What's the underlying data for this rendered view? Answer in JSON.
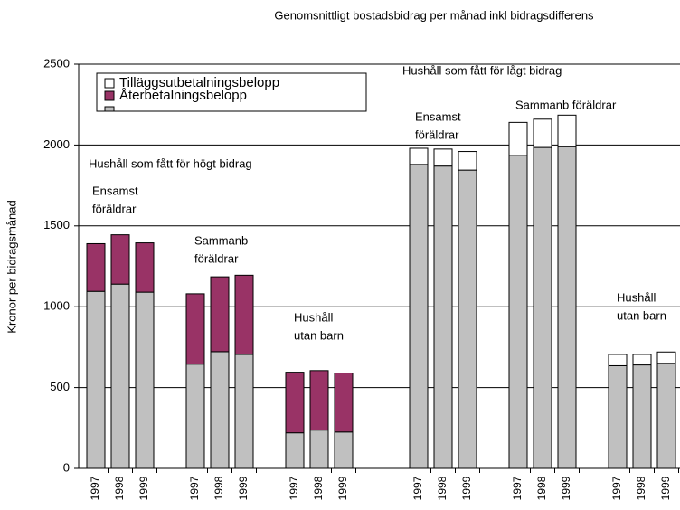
{
  "chart_data": {
    "type": "stacked_bar",
    "title": "Genomsnittligt bostadsbidrag per månad inkl bidragsdifferens",
    "y_label": "Kronor per bidragsmånad",
    "categories": [
      "1997",
      "1998",
      "1999",
      "1997",
      "1998",
      "1999",
      "1997",
      "1998",
      "1999",
      "1997",
      "1998",
      "1999",
      "1997",
      "1998",
      "1999",
      "1997",
      "1998",
      "1999"
    ],
    "series": [
      {
        "color": "#c0c0c0",
        "values": [
          1095,
          1140,
          1090,
          645,
          722,
          705,
          220,
          237,
          225,
          1880,
          1870,
          1845,
          1935,
          1985,
          1990,
          635,
          640,
          650
        ]
      },
      {
        "name": "Återbetalningsbelopp",
        "color": "#993366",
        "values": [
          295,
          305,
          305,
          435,
          463,
          490,
          375,
          368,
          365,
          null,
          null,
          null,
          null,
          null,
          null,
          null,
          null,
          null
        ]
      },
      {
        "name": "Tilläggsutbetalningsbelopp",
        "color": "#ffffff",
        "values": [
          null,
          null,
          null,
          null,
          null,
          null,
          null,
          null,
          null,
          100,
          105,
          115,
          205,
          175,
          195,
          70,
          65,
          70
        ]
      }
    ],
    "ylim": [
      0,
      2500
    ],
    "yticks": [
      0,
      500,
      1000,
      1500,
      2000,
      2500
    ],
    "grid": true,
    "annotations": [
      [
        "Hushåll som fått för högt bidrag"
      ],
      [
        "Ensamst",
        "föräldrar"
      ],
      [
        "Sammanb",
        "föräldrar"
      ],
      [
        "Hushåll",
        "utan barn"
      ],
      [
        "Hushåll som fått för lågt bidrag"
      ],
      [
        "Ensamst",
        "föräldrar"
      ],
      [
        "Sammanb föräldrar"
      ],
      [
        "Hushåll",
        "utan barn"
      ]
    ]
  }
}
